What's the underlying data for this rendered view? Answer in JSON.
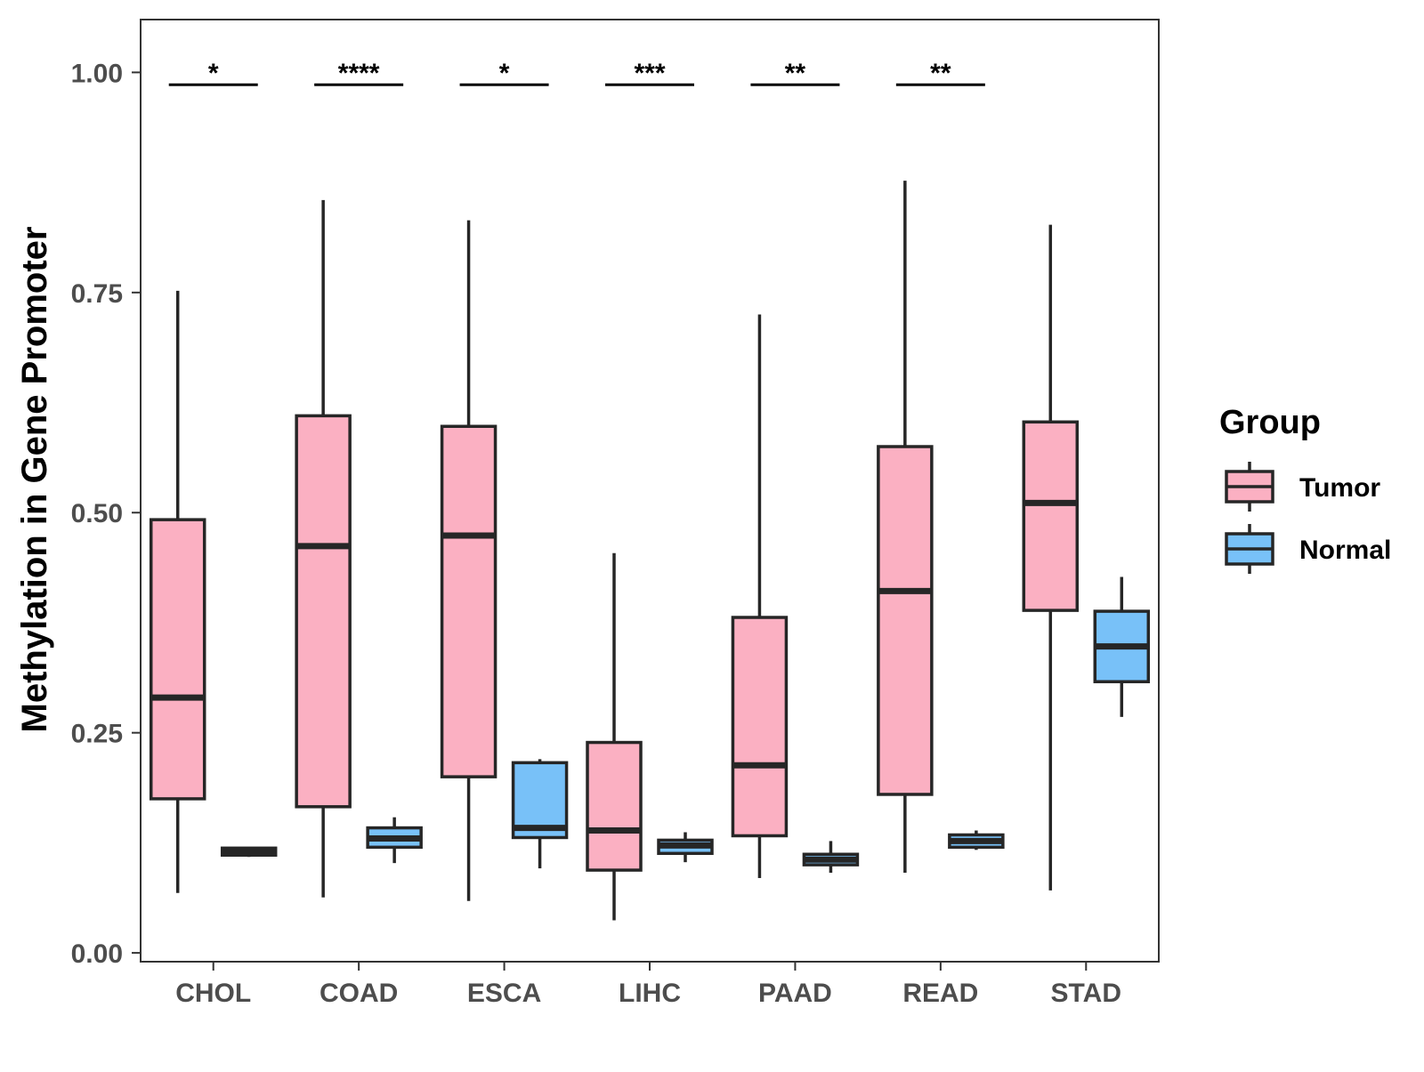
{
  "chart_data": {
    "type": "boxplot",
    "title": "",
    "xlabel": "",
    "ylabel": "Methylation in Gene Promoter",
    "ylim": [
      -0.01,
      1.06
    ],
    "yticks": [
      0.0,
      0.25,
      0.5,
      0.75,
      1.0
    ],
    "ytick_labels": [
      "0.00",
      "0.25",
      "0.50",
      "0.75",
      "1.00"
    ],
    "categories": [
      "CHOL",
      "COAD",
      "ESCA",
      "LIHC",
      "PAAD",
      "READ",
      "STAD"
    ],
    "legend": {
      "title": "Group",
      "position": "right",
      "items": [
        {
          "name": "Tumor",
          "color": "#fbb0c2"
        },
        {
          "name": "Normal",
          "color": "#78c1f8"
        }
      ]
    },
    "series": [
      {
        "name": "Tumor",
        "color": "#fbb0c2",
        "boxes": [
          {
            "category": "CHOL",
            "whisker_low": 0.068,
            "q1": 0.175,
            "median": 0.29,
            "q3": 0.492,
            "whisker_high": 0.752
          },
          {
            "category": "COAD",
            "whisker_low": 0.063,
            "q1": 0.166,
            "median": 0.462,
            "q3": 0.61,
            "whisker_high": 0.855
          },
          {
            "category": "ESCA",
            "whisker_low": 0.059,
            "q1": 0.2,
            "median": 0.474,
            "q3": 0.598,
            "whisker_high": 0.832
          },
          {
            "category": "LIHC",
            "whisker_low": 0.037,
            "q1": 0.094,
            "median": 0.139,
            "q3": 0.239,
            "whisker_high": 0.454
          },
          {
            "category": "PAAD",
            "whisker_low": 0.085,
            "q1": 0.133,
            "median": 0.213,
            "q3": 0.381,
            "whisker_high": 0.725
          },
          {
            "category": "READ",
            "whisker_low": 0.091,
            "q1": 0.18,
            "median": 0.411,
            "q3": 0.575,
            "whisker_high": 0.877
          },
          {
            "category": "STAD",
            "whisker_low": 0.071,
            "q1": 0.389,
            "median": 0.511,
            "q3": 0.603,
            "whisker_high": 0.827
          }
        ]
      },
      {
        "name": "Normal",
        "color": "#78c1f8",
        "boxes": [
          {
            "category": "CHOL",
            "whisker_low": 0.109,
            "q1": 0.111,
            "median": 0.115,
            "q3": 0.119,
            "whisker_high": 0.12
          },
          {
            "category": "COAD",
            "whisker_low": 0.102,
            "q1": 0.12,
            "median": 0.13,
            "q3": 0.142,
            "whisker_high": 0.154
          },
          {
            "category": "ESCA",
            "whisker_low": 0.096,
            "q1": 0.131,
            "median": 0.142,
            "q3": 0.216,
            "whisker_high": 0.22
          },
          {
            "category": "LIHC",
            "whisker_low": 0.103,
            "q1": 0.113,
            "median": 0.122,
            "q3": 0.128,
            "whisker_high": 0.137
          },
          {
            "category": "PAAD",
            "whisker_low": 0.091,
            "q1": 0.1,
            "median": 0.106,
            "q3": 0.112,
            "whisker_high": 0.127
          },
          {
            "category": "READ",
            "whisker_low": 0.117,
            "q1": 0.12,
            "median": 0.127,
            "q3": 0.134,
            "whisker_high": 0.139
          },
          {
            "category": "STAD",
            "whisker_low": 0.268,
            "q1": 0.308,
            "median": 0.348,
            "q3": 0.388,
            "whisker_high": 0.427
          }
        ]
      }
    ],
    "significance": [
      {
        "category": "CHOL",
        "label": "*",
        "y": 0.986
      },
      {
        "category": "COAD",
        "label": "****",
        "y": 0.986
      },
      {
        "category": "ESCA",
        "label": "*",
        "y": 0.986
      },
      {
        "category": "LIHC",
        "label": "***",
        "y": 0.986
      },
      {
        "category": "PAAD",
        "label": "**",
        "y": 0.986
      },
      {
        "category": "READ",
        "label": "**",
        "y": 0.986
      }
    ]
  }
}
